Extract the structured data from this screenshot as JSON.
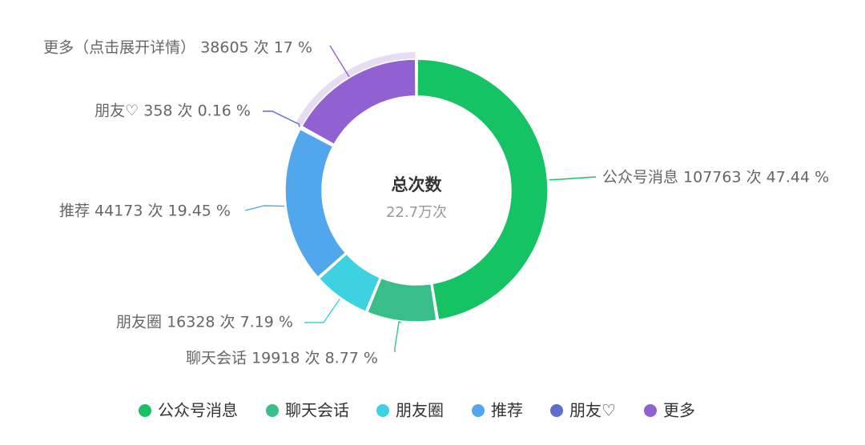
{
  "chart_data": {
    "type": "pie",
    "style": "donut",
    "center": {
      "title": "总次数",
      "subtitle": "22.7万次"
    },
    "unit": "次",
    "slices": [
      {
        "name": "公众号消息",
        "label": "公众号消息 107763 次 47.44 %",
        "value": 107763,
        "percent": 47.44,
        "color": "#15C365"
      },
      {
        "name": "聊天会话",
        "label": "聊天会话 19918 次 8.77 %",
        "value": 19918,
        "percent": 8.77,
        "color": "#39BE8A"
      },
      {
        "name": "朋友圈",
        "label": "朋友圈 16328 次 7.19 %",
        "value": 16328,
        "percent": 7.19,
        "color": "#3DD1E1"
      },
      {
        "name": "推荐",
        "label": "推荐 44173 次 19.45 %",
        "value": 44173,
        "percent": 19.45,
        "color": "#52A7EC"
      },
      {
        "name": "朋友♡",
        "label": "朋友♡ 358 次 0.16 %",
        "value": 358,
        "percent": 0.16,
        "color": "#5D6ECB"
      },
      {
        "name": "更多",
        "label": "更多（点击展开详情） 38605 次 17 %",
        "value": 38605,
        "percent": 17,
        "color": "#9161D2"
      }
    ],
    "legend": {
      "position": "bottom",
      "items": [
        "公众号消息",
        "聊天会话",
        "朋友圈",
        "推荐",
        "朋友♡",
        "更多"
      ]
    },
    "emphasis": {
      "slice": "更多",
      "color": "#E6DDF3"
    }
  }
}
